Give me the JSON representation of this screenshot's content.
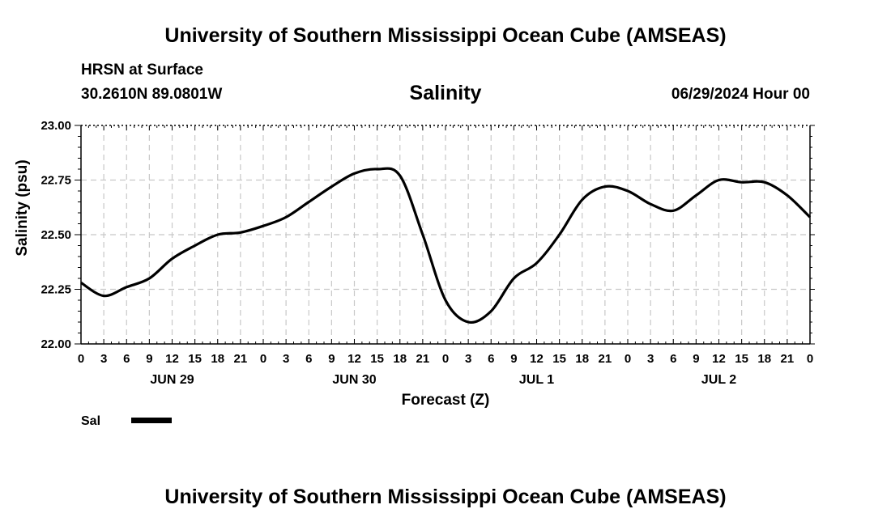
{
  "header": {
    "title": "University of Southern Mississippi Ocean Cube (AMSEAS)",
    "station": "HRSN at Surface",
    "coords": "30.2610N  89.0801W",
    "run": "06/29/2024 Hour 00"
  },
  "footer": {
    "title": "University of Southern Mississippi Ocean Cube (AMSEAS)"
  },
  "colors": {
    "line": "#000000",
    "grid": "#c8c8c8"
  },
  "chart_data": {
    "type": "line",
    "title": "Salinity",
    "xlabel": "Forecast (Z)",
    "ylabel": "Salinity (psu)",
    "xlim": [
      0,
      96
    ],
    "ylim": [
      22.0,
      23.0
    ],
    "grid": true,
    "x_tick_labels": [
      "0",
      "3",
      "6",
      "9",
      "12",
      "15",
      "18",
      "21",
      "0",
      "3",
      "6",
      "9",
      "12",
      "15",
      "18",
      "21",
      "0",
      "3",
      "6",
      "9",
      "12",
      "15",
      "18",
      "21",
      "0",
      "3",
      "6",
      "9",
      "12",
      "15",
      "18",
      "21",
      "0"
    ],
    "y_tick_labels": [
      "22.00",
      "22.25",
      "22.50",
      "22.75",
      "23.00"
    ],
    "y_ticks": [
      22.0,
      22.25,
      22.5,
      22.75,
      23.0
    ],
    "day_labels": [
      {
        "label": "JUN 29",
        "x": 12
      },
      {
        "label": "JUN 30",
        "x": 36
      },
      {
        "label": "JUL 1",
        "x": 60
      },
      {
        "label": "JUL 2",
        "x": 84
      }
    ],
    "legend": "bottom-left",
    "series": [
      {
        "name": "Sal",
        "x": [
          0,
          3,
          6,
          9,
          12,
          15,
          18,
          21,
          24,
          27,
          30,
          33,
          36,
          39,
          42,
          45,
          48,
          51,
          54,
          57,
          60,
          63,
          66,
          69,
          72,
          75,
          78,
          81,
          84,
          87,
          90,
          93,
          96
        ],
        "values": [
          22.28,
          22.22,
          22.26,
          22.3,
          22.39,
          22.45,
          22.5,
          22.51,
          22.54,
          22.58,
          22.65,
          22.72,
          22.78,
          22.8,
          22.77,
          22.5,
          22.2,
          22.1,
          22.15,
          22.3,
          22.37,
          22.5,
          22.66,
          22.72,
          22.7,
          22.64,
          22.61,
          22.68,
          22.75,
          22.74,
          22.74,
          22.68,
          22.58
        ]
      }
    ]
  }
}
